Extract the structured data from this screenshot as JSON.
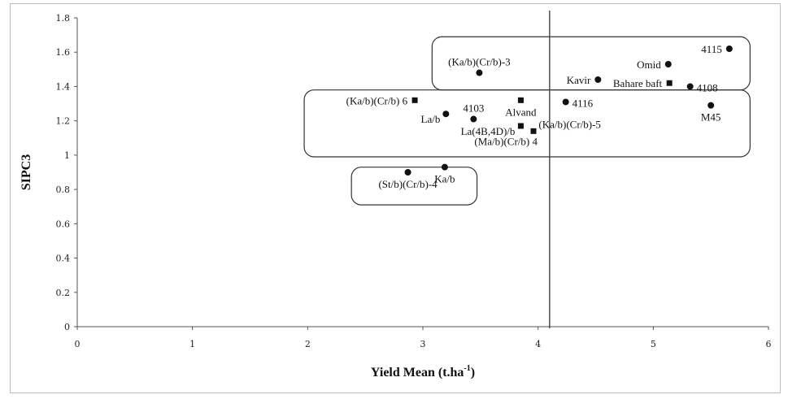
{
  "chart_data": {
    "type": "scatter",
    "title": "",
    "xlabel": "Yield Mean (t.ha",
    "xlabel_sup": "-1",
    "xlabel_close": ")",
    "ylabel": "SIPC3",
    "xlim": [
      0,
      6
    ],
    "ylim": [
      0,
      1.8
    ],
    "x_ticks": [
      "0",
      "1",
      "2",
      "3",
      "4",
      "5",
      "6"
    ],
    "y_ticks": [
      "0",
      "0.2",
      "0.4",
      "0.6",
      "0.8",
      "1",
      "1.2",
      "1.4",
      "1.6",
      "1.8"
    ],
    "grid": false,
    "reference_line_x": 4.1,
    "points": [
      {
        "label": "4115",
        "x": 5.66,
        "y": 1.62,
        "marker": "circle",
        "label_pos": "left"
      },
      {
        "label": "Omid",
        "x": 5.13,
        "y": 1.53,
        "marker": "circle",
        "label_pos": "left"
      },
      {
        "label": "Kavir",
        "x": 4.52,
        "y": 1.44,
        "marker": "circle",
        "label_pos": "left"
      },
      {
        "label": "Bahare baft",
        "x": 5.14,
        "y": 1.42,
        "marker": "square",
        "label_pos": "left"
      },
      {
        "label": "4108",
        "x": 5.32,
        "y": 1.4,
        "marker": "circle",
        "label_pos": "right"
      },
      {
        "label": "M45",
        "x": 5.5,
        "y": 1.29,
        "marker": "circle",
        "label_pos": "below"
      },
      {
        "label": "4116",
        "x": 4.24,
        "y": 1.31,
        "marker": "circle",
        "label_pos": "right"
      },
      {
        "label": "(Ka/b)(Cr/b)-5",
        "x": 4.24,
        "y": 1.31,
        "marker": "none",
        "label_pos": "below-far"
      },
      {
        "label": "(Ka/b)(Cr/b)-3",
        "x": 3.49,
        "y": 1.48,
        "marker": "circle",
        "label_pos": "above"
      },
      {
        "label": "(Ka/b)(Cr/b) 6",
        "x": 2.93,
        "y": 1.32,
        "marker": "square",
        "label_pos": "left"
      },
      {
        "label": "La/b",
        "x": 3.2,
        "y": 1.24,
        "marker": "circle",
        "label_pos": "left-below"
      },
      {
        "label": "4103",
        "x": 3.44,
        "y": 1.21,
        "marker": "circle",
        "label_pos": "above"
      },
      {
        "label": "Alvand",
        "x": 3.85,
        "y": 1.32,
        "marker": "square",
        "label_pos": "below"
      },
      {
        "label": "La(4B,4D)/b",
        "x": 3.85,
        "y": 1.17,
        "marker": "square",
        "label_pos": "left-below"
      },
      {
        "label": "(Ma/b)(Cr/b) 4",
        "x": 3.96,
        "y": 1.14,
        "marker": "square",
        "label_pos": "below-left"
      },
      {
        "label": "Ka/b",
        "x": 3.19,
        "y": 0.93,
        "marker": "circle",
        "label_pos": "below"
      },
      {
        "label": "(St/b)(Cr/b)-4",
        "x": 2.87,
        "y": 0.9,
        "marker": "circle",
        "label_pos": "below"
      }
    ],
    "groups": [
      {
        "name": "group-top",
        "xmin": 3.08,
        "xmax": 5.84,
        "ymin": 1.38,
        "ymax": 1.69
      },
      {
        "name": "group-middle",
        "xmin": 1.97,
        "xmax": 5.84,
        "ymin": 0.99,
        "ymax": 1.38
      },
      {
        "name": "group-bottom",
        "xmin": 2.38,
        "xmax": 3.47,
        "ymin": 0.71,
        "ymax": 0.93
      }
    ]
  }
}
